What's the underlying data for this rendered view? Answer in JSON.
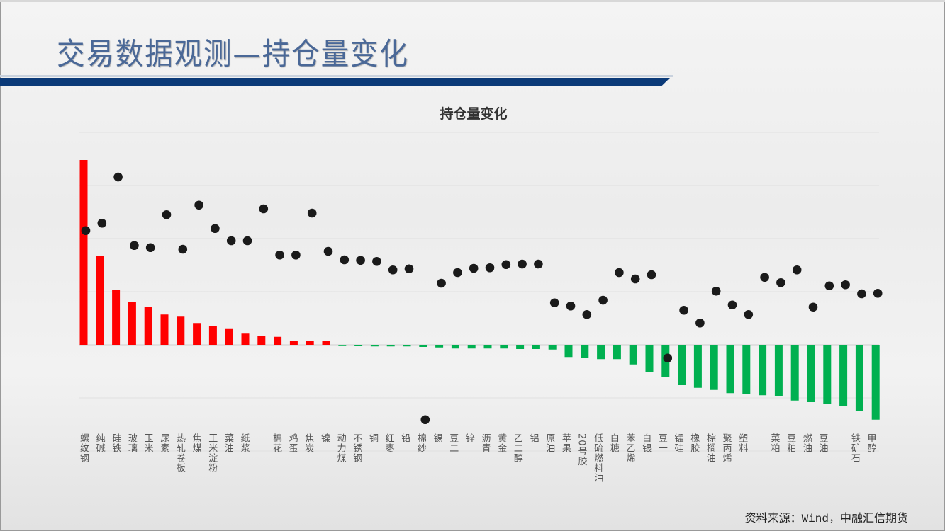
{
  "header": {
    "title": "交易数据观测—持仓量变化"
  },
  "footer": {
    "source": "资料来源：Wind，中融汇信期货"
  },
  "colors": {
    "title": "#4a6897",
    "title_bar": "#0b3a78",
    "positive_bar": "#ff0000",
    "negative_bar": "#00b050",
    "dot": "#1a1a1a"
  },
  "chart_data": {
    "type": "bar",
    "title": "持仓量变化",
    "xlabel": "",
    "ylabel": "",
    "ylim": [
      -2,
      4
    ],
    "grid": true,
    "categories": [
      "螺纹钢",
      "纯碱",
      "硅铁",
      "玻璃",
      "玉米",
      "尿素",
      "热轧卷板",
      "焦煤",
      "王米淀粉",
      "菜油",
      "纸浆",
      "",
      "棉花",
      "鸡蛋",
      "焦炭",
      "镍",
      "动力煤",
      "不锈钢",
      "铜",
      "红枣",
      "铅",
      "棉纱",
      "锡",
      "豆二",
      "锌",
      "沥青",
      "黄金",
      "乙二醇",
      "铝",
      "原油",
      "苹果",
      "20号胶",
      "低硫燃料油",
      "白糖",
      "苯乙烯",
      "白银",
      "豆一",
      "锰硅",
      "橡胶",
      "棕榈油",
      "聚丙烯",
      "塑料",
      "",
      "菜粕",
      "豆粕",
      "燃油",
      "豆油",
      "",
      "铁矿石",
      "甲醇"
    ],
    "series": [
      {
        "type": "bar",
        "values": [
          3.48,
          1.67,
          1.04,
          0.8,
          0.72,
          0.57,
          0.53,
          0.41,
          0.35,
          0.31,
          0.21,
          0.16,
          0.15,
          0.08,
          0.07,
          0.07,
          -0.01,
          -0.02,
          -0.03,
          -0.03,
          -0.03,
          -0.04,
          -0.05,
          -0.07,
          -0.07,
          -0.07,
          -0.07,
          -0.08,
          -0.08,
          -0.09,
          -0.23,
          -0.25,
          -0.27,
          -0.27,
          -0.37,
          -0.51,
          -0.61,
          -0.76,
          -0.81,
          -0.85,
          -0.91,
          -0.92,
          -0.95,
          -0.96,
          -1.05,
          -1.08,
          -1.12,
          -1.15,
          -1.25,
          -1.41
        ]
      },
      {
        "type": "scatter",
        "values": [
          2.15,
          2.29,
          3.16,
          1.87,
          1.83,
          2.45,
          1.8,
          2.63,
          2.19,
          1.96,
          1.96,
          2.56,
          1.69,
          1.69,
          2.48,
          1.76,
          1.6,
          1.59,
          1.57,
          1.41,
          1.43,
          -1.41,
          1.16,
          1.36,
          1.44,
          1.45,
          1.51,
          1.52,
          1.52,
          0.79,
          0.73,
          0.57,
          0.84,
          1.36,
          1.24,
          1.32,
          -0.25,
          0.65,
          0.41,
          1.01,
          0.75,
          0.57,
          1.27,
          1.17,
          1.41,
          0.71,
          1.11,
          1.13,
          0.96,
          0.97
        ]
      }
    ]
  }
}
